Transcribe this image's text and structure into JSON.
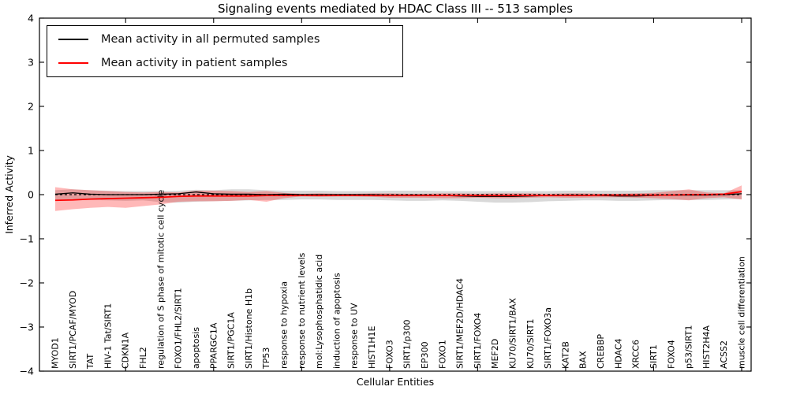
{
  "chart_data": {
    "type": "line",
    "title": "Signaling events mediated by HDAC Class III -- 513 samples",
    "xlabel": "Cellular Entities",
    "ylabel": "Inferred Activity",
    "ylim": [
      -4,
      4
    ],
    "yticks": [
      4,
      3,
      2,
      1,
      0,
      -1,
      -2,
      -3,
      -4
    ],
    "xtick_every": 5,
    "grid": false,
    "legend_position": "upper left",
    "categories": [
      "MYOD1",
      "SIRT1/PCAF/MYOD",
      "TAT",
      "HIV-1 Tat/SIRT1",
      "CDKN1A",
      "FHL2",
      "regulation of S phase of mitotic cell cycle",
      "FOXO1/FHL2/SIRT1",
      "apoptosis",
      "PPARGC1A",
      "SIRT1/PGC1A",
      "SIRT1/Histone H1b",
      "TP53",
      "response to hypoxia",
      "response to nutrient levels",
      "mol:Lysophosphatidic acid",
      "induction of apoptosis",
      "response to UV",
      "HIST1H1E",
      "FOXO3",
      "SIRT1/p300",
      "EP300",
      "FOXO1",
      "SIRT1/MEF2D/HDAC4",
      "SIRT1/FOXO4",
      "MEF2D",
      "KU70/SIRT1/BAX",
      "KU70/SIRT1",
      "SIRT1/FOXO3a",
      "KAT2B",
      "BAX",
      "CREBBP",
      "HDAC4",
      "XRCC6",
      "SIRT1",
      "FOXO4",
      "p53/SIRT1",
      "HIST2H4A",
      "ACSS2",
      "muscle cell differentiation"
    ],
    "series": [
      {
        "name": "Mean activity in all permuted samples",
        "color": "#000000",
        "line_style": "solid",
        "line_width": 1.3,
        "values": [
          0.01,
          0.04,
          0.01,
          0.0,
          0.0,
          0.0,
          0.01,
          0.02,
          0.06,
          0.02,
          0.01,
          0.01,
          0.0,
          0.01,
          0.0,
          0.0,
          0.0,
          0.0,
          0.0,
          -0.01,
          -0.01,
          -0.01,
          -0.02,
          -0.03,
          -0.04,
          -0.04,
          -0.04,
          -0.03,
          -0.02,
          -0.01,
          -0.01,
          -0.02,
          -0.03,
          -0.03,
          -0.02,
          -0.01,
          -0.01,
          -0.01,
          0.0,
          0.02
        ]
      },
      {
        "name": "Mean activity in patient samples",
        "color": "#ff0000",
        "line_style": "solid",
        "line_width": 1.8,
        "values": [
          -0.13,
          -0.12,
          -0.1,
          -0.09,
          -0.08,
          -0.07,
          -0.06,
          -0.04,
          -0.03,
          -0.03,
          -0.03,
          -0.03,
          -0.02,
          -0.02,
          -0.02,
          -0.02,
          -0.02,
          -0.02,
          -0.02,
          -0.02,
          -0.02,
          -0.02,
          -0.02,
          -0.02,
          -0.02,
          -0.02,
          -0.02,
          -0.02,
          -0.02,
          -0.02,
          -0.02,
          -0.01,
          -0.01,
          -0.01,
          -0.01,
          -0.01,
          0.0,
          0.0,
          0.01,
          0.07
        ]
      },
      {
        "name": "zero-baseline",
        "color": "#000000",
        "line_style": "dashed",
        "line_width": 1.2,
        "in_legend": false,
        "values": [
          0,
          0,
          0,
          0,
          0,
          0,
          0,
          0,
          0,
          0,
          0,
          0,
          0,
          0,
          0,
          0,
          0,
          0,
          0,
          0,
          0,
          0,
          0,
          0,
          0,
          0,
          0,
          0,
          0,
          0,
          0,
          0,
          0,
          0,
          0,
          0,
          0,
          0,
          0,
          0
        ]
      }
    ],
    "bands": [
      {
        "name": "permuted-samples-std-band",
        "color": "rgba(128,128,128,0.30)",
        "upper": [
          0.1,
          0.12,
          0.1,
          0.09,
          0.08,
          0.08,
          0.08,
          0.09,
          0.11,
          0.1,
          0.12,
          0.12,
          0.1,
          0.09,
          0.09,
          0.09,
          0.08,
          0.08,
          0.08,
          0.09,
          0.09,
          0.09,
          0.08,
          0.08,
          0.08,
          0.08,
          0.08,
          0.08,
          0.08,
          0.09,
          0.09,
          0.09,
          0.09,
          0.09,
          0.1,
          0.1,
          0.1,
          0.1,
          0.1,
          0.1
        ],
        "lower": [
          -0.12,
          -0.11,
          -0.12,
          -0.13,
          -0.14,
          -0.13,
          -0.17,
          -0.18,
          -0.16,
          -0.15,
          -0.14,
          -0.13,
          -0.12,
          -0.12,
          -0.11,
          -0.11,
          -0.12,
          -0.12,
          -0.12,
          -0.13,
          -0.14,
          -0.14,
          -0.13,
          -0.14,
          -0.16,
          -0.18,
          -0.18,
          -0.17,
          -0.15,
          -0.14,
          -0.13,
          -0.13,
          -0.14,
          -0.14,
          -0.13,
          -0.12,
          -0.12,
          -0.12,
          -0.11,
          -0.1
        ]
      },
      {
        "name": "patient-samples-std-band",
        "color": "rgba(255,0,0,0.28)",
        "upper": [
          0.17,
          0.12,
          0.1,
          0.08,
          0.06,
          0.05,
          0.06,
          0.05,
          0.09,
          0.09,
          0.08,
          0.06,
          0.08,
          0.04,
          0.02,
          0.03,
          0.02,
          0.02,
          0.03,
          0.03,
          0.02,
          0.02,
          0.03,
          0.03,
          0.02,
          0.03,
          0.03,
          0.03,
          0.02,
          0.03,
          0.03,
          0.02,
          0.02,
          0.03,
          0.04,
          0.08,
          0.12,
          0.05,
          0.03,
          0.21
        ],
        "lower": [
          -0.37,
          -0.33,
          -0.3,
          -0.28,
          -0.3,
          -0.26,
          -0.22,
          -0.16,
          -0.15,
          -0.15,
          -0.14,
          -0.12,
          -0.16,
          -0.08,
          -0.04,
          -0.05,
          -0.04,
          -0.04,
          -0.05,
          -0.07,
          -0.07,
          -0.07,
          -0.08,
          -0.08,
          -0.07,
          -0.08,
          -0.08,
          -0.07,
          -0.06,
          -0.07,
          -0.07,
          -0.06,
          -0.06,
          -0.07,
          -0.08,
          -0.1,
          -0.13,
          -0.08,
          -0.06,
          -0.11
        ]
      }
    ]
  }
}
